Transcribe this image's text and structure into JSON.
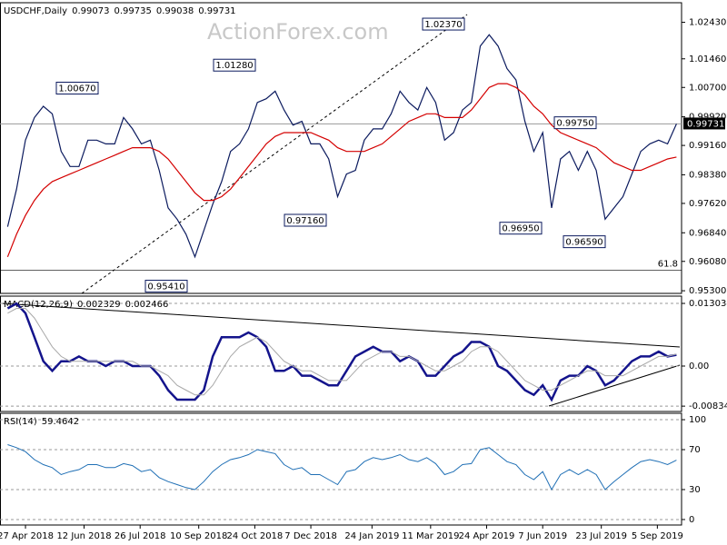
{
  "watermark": "ActionForex.com",
  "chart_data": {
    "type": "panels",
    "x": [
      "2018-04-13",
      "2018-04-20",
      "2018-04-27",
      "2018-05-04",
      "2018-05-11",
      "2018-05-18",
      "2018-05-25",
      "2018-06-01",
      "2018-06-08",
      "2018-06-15",
      "2018-06-22",
      "2018-06-29",
      "2018-07-06",
      "2018-07-13",
      "2018-07-20",
      "2018-07-27",
      "2018-08-03",
      "2018-08-10",
      "2018-08-17",
      "2018-08-24",
      "2018-08-31",
      "2018-09-07",
      "2018-09-14",
      "2018-09-21",
      "2018-09-28",
      "2018-10-05",
      "2018-10-12",
      "2018-10-19",
      "2018-10-26",
      "2018-11-02",
      "2018-11-09",
      "2018-11-16",
      "2018-11-23",
      "2018-11-30",
      "2018-12-07",
      "2018-12-14",
      "2018-12-21",
      "2018-12-28",
      "2019-01-04",
      "2019-01-11",
      "2019-01-18",
      "2019-01-25",
      "2019-02-01",
      "2019-02-08",
      "2019-02-15",
      "2019-02-22",
      "2019-03-01",
      "2019-03-08",
      "2019-03-15",
      "2019-03-22",
      "2019-03-29",
      "2019-04-05",
      "2019-04-12",
      "2019-04-19",
      "2019-04-26",
      "2019-05-03",
      "2019-05-10",
      "2019-05-17",
      "2019-05-24",
      "2019-05-31",
      "2019-06-07",
      "2019-06-14",
      "2019-06-21",
      "2019-06-28",
      "2019-07-05",
      "2019-07-12",
      "2019-07-19",
      "2019-07-26",
      "2019-08-02",
      "2019-08-09",
      "2019-08-16",
      "2019-08-23",
      "2019-08-30",
      "2019-09-06",
      "2019-09-13",
      "2019-09-20"
    ],
    "xlim": [
      "2018-04-07",
      "2019-09-24"
    ],
    "xticks": [
      {
        "value": "2018-04-27",
        "label": "27 Apr 2018"
      },
      {
        "value": "2018-06-12",
        "label": "12 Jun 2018"
      },
      {
        "value": "2018-07-26",
        "label": "26 Jul 2018"
      },
      {
        "value": "2018-09-10",
        "label": "10 Sep 2018"
      },
      {
        "value": "2018-10-24",
        "label": "24 Oct 2018"
      },
      {
        "value": "2018-12-07",
        "label": "7 Dec 2018"
      },
      {
        "value": "2019-01-24",
        "label": "24 Jan 2019"
      },
      {
        "value": "2019-03-11",
        "label": "11 Mar 2019"
      },
      {
        "value": "2019-04-24",
        "label": "24 Apr 2019"
      },
      {
        "value": "2019-06-07",
        "label": "7 Jun 2019"
      },
      {
        "value": "2019-07-23",
        "label": "23 Jul 2019"
      },
      {
        "value": "2019-09-05",
        "label": "5 Sep 2019"
      }
    ],
    "panels": [
      {
        "type": "line",
        "title": "USDCHF,Daily",
        "header_values": [
          0.99073,
          0.99735,
          0.99038,
          0.99731
        ],
        "ylim": [
          0.9523,
          1.0295
        ],
        "yticks": [
          {
            "value": 1.0243,
            "label": "1.02430"
          },
          {
            "value": 1.0146,
            "label": "1.01460"
          },
          {
            "value": 1.007,
            "label": "1.00700"
          },
          {
            "value": 0.9992,
            "label": "0.99920"
          },
          {
            "value": 0.9916,
            "label": "0.99160"
          },
          {
            "value": 0.9838,
            "label": "0.98380"
          },
          {
            "value": 0.9762,
            "label": "0.97620"
          },
          {
            "value": 0.9684,
            "label": "0.96840"
          },
          {
            "value": 0.9608,
            "label": "0.96080"
          },
          {
            "value": 0.953,
            "label": "0.95300"
          }
        ],
        "series": [
          {
            "color": "#0b1a5e",
            "width": 1.2,
            "values": [
              0.97,
              0.98,
              0.993,
              0.999,
              1.002,
              1.0,
              0.99,
              0.986,
              0.986,
              0.993,
              0.993,
              0.992,
              0.992,
              0.999,
              0.996,
              0.992,
              0.993,
              0.985,
              0.975,
              0.972,
              0.968,
              0.962,
              0.969,
              0.976,
              0.982,
              0.99,
              0.992,
              0.996,
              1.003,
              1.004,
              1.006,
              1.001,
              0.997,
              0.998,
              0.992,
              0.992,
              0.988,
              0.978,
              0.984,
              0.985,
              0.993,
              0.996,
              0.996,
              1.0,
              1.006,
              1.003,
              1.001,
              1.007,
              1.003,
              0.993,
              0.995,
              1.001,
              1.003,
              1.018,
              1.021,
              1.018,
              1.012,
              1.009,
              0.998,
              0.99,
              0.995,
              0.975,
              0.988,
              0.99,
              0.985,
              0.99,
              0.985,
              0.972,
              0.975,
              0.978,
              0.984,
              0.99,
              0.992,
              0.993,
              0.992,
              0.99731
            ]
          },
          {
            "color": "#d40000",
            "width": 1.2,
            "values": [
              0.962,
              0.968,
              0.973,
              0.977,
              0.98,
              0.982,
              0.983,
              0.984,
              0.985,
              0.986,
              0.987,
              0.988,
              0.989,
              0.99,
              0.991,
              0.991,
              0.991,
              0.99,
              0.988,
              0.985,
              0.982,
              0.979,
              0.977,
              0.977,
              0.978,
              0.98,
              0.983,
              0.986,
              0.989,
              0.992,
              0.994,
              0.995,
              0.995,
              0.995,
              0.995,
              0.994,
              0.993,
              0.991,
              0.99,
              0.99,
              0.99,
              0.991,
              0.992,
              0.994,
              0.996,
              0.998,
              0.999,
              1.0,
              1.0,
              0.999,
              0.999,
              0.999,
              1.001,
              1.004,
              1.007,
              1.008,
              1.008,
              1.007,
              1.005,
              1.002,
              1.0,
              0.997,
              0.995,
              0.994,
              0.993,
              0.992,
              0.991,
              0.989,
              0.987,
              0.986,
              0.985,
              0.985,
              0.986,
              0.987,
              0.988,
              0.9885
            ]
          }
        ],
        "annotations": [
          {
            "value": 1.0067,
            "label": "1.00670"
          },
          {
            "value": 1.0128,
            "label": "1.01280"
          },
          {
            "value": 1.0237,
            "label": "1.02370"
          },
          {
            "value": 0.9541,
            "label": "0.95410"
          },
          {
            "value": 0.9716,
            "label": "0.97160"
          },
          {
            "value": 0.9695,
            "label": "0.96950"
          },
          {
            "value": 0.9659,
            "label": "0.96590"
          },
          {
            "value": 0.9975,
            "label": "0.99750"
          }
        ],
        "last_price": 0.99731,
        "fib": {
          "value": 0.9585,
          "label": "61.8"
        }
      },
      {
        "type": "line",
        "title": "MACD(12,26,9)",
        "header_values": [
          0.002329,
          0.002466
        ],
        "ylim": [
          -0.00945,
          0.01455
        ],
        "yticks": [
          0.013034,
          {
            "value": 0,
            "label": "0.00"
          },
          -0.00834
        ],
        "series": [
          {
            "color": "#14148c",
            "width": 2.5,
            "values": [
              0.012,
              0.013,
              0.011,
              0.006,
              0.001,
              -0.001,
              0.001,
              0.001,
              0.002,
              0.001,
              0.001,
              0.0,
              0.001,
              0.001,
              0.0,
              0.0,
              0.0,
              -0.002,
              -0.005,
              -0.007,
              -0.007,
              -0.007,
              -0.005,
              0.002,
              0.006,
              0.006,
              0.006,
              0.007,
              0.006,
              0.004,
              -0.001,
              -0.001,
              0.0,
              -0.002,
              -0.002,
              -0.003,
              -0.004,
              -0.004,
              -0.001,
              0.002,
              0.003,
              0.004,
              0.003,
              0.003,
              0.001,
              0.002,
              0.001,
              -0.002,
              -0.002,
              0.0,
              0.002,
              0.003,
              0.005,
              0.005,
              0.004,
              0.0,
              -0.001,
              -0.003,
              -0.005,
              -0.006,
              -0.004,
              -0.007,
              -0.003,
              -0.002,
              -0.002,
              0.0,
              -0.001,
              -0.004,
              -0.003,
              -0.001,
              0.001,
              0.002,
              0.002,
              0.003,
              0.002,
              0.002329
            ]
          },
          {
            "color": "#a8a8a8",
            "width": 1,
            "values": [
              0.011,
              0.012,
              0.012,
              0.01,
              0.007,
              0.004,
              0.002,
              0.001,
              0.001,
              0.001,
              0.001,
              0.001,
              0.001,
              0.001,
              0.001,
              0.0,
              0.0,
              -0.001,
              -0.002,
              -0.004,
              -0.005,
              -0.006,
              -0.006,
              -0.004,
              -0.001,
              0.002,
              0.004,
              0.005,
              0.006,
              0.005,
              0.003,
              0.001,
              0.0,
              -0.001,
              -0.001,
              -0.002,
              -0.003,
              -0.003,
              -0.003,
              -0.001,
              0.001,
              0.002,
              0.003,
              0.003,
              0.002,
              0.002,
              0.001,
              0.0,
              -0.001,
              -0.001,
              0.0,
              0.001,
              0.003,
              0.004,
              0.004,
              0.003,
              0.001,
              -0.001,
              -0.003,
              -0.004,
              -0.005,
              -0.005,
              -0.004,
              -0.003,
              -0.002,
              -0.001,
              -0.001,
              -0.002,
              -0.002,
              -0.002,
              -0.001,
              0.0,
              0.001,
              0.002,
              0.002,
              0.002466
            ]
          }
        ]
      },
      {
        "type": "line",
        "title": "RSI(14)",
        "header_values": [
          59.4642
        ],
        "ylim": [
          -5.5,
          106.4
        ],
        "yticks": [
          100,
          70,
          30,
          0
        ],
        "grid": true,
        "series": [
          {
            "color": "#1f6fb5",
            "width": 1,
            "values": [
              75,
              72,
              68,
              60,
              55,
              52,
              45,
              48,
              50,
              55,
              55,
              52,
              52,
              56,
              54,
              48,
              50,
              42,
              38,
              35,
              32,
              30,
              38,
              48,
              55,
              60,
              62,
              65,
              70,
              68,
              66,
              55,
              50,
              52,
              45,
              45,
              40,
              35,
              48,
              50,
              58,
              62,
              60,
              62,
              65,
              60,
              58,
              62,
              56,
              45,
              48,
              55,
              56,
              70,
              72,
              65,
              58,
              55,
              45,
              40,
              48,
              30,
              45,
              50,
              45,
              50,
              45,
              30,
              38,
              45,
              52,
              58,
              60,
              58,
              55,
              59.4642
            ]
          }
        ]
      }
    ]
  }
}
